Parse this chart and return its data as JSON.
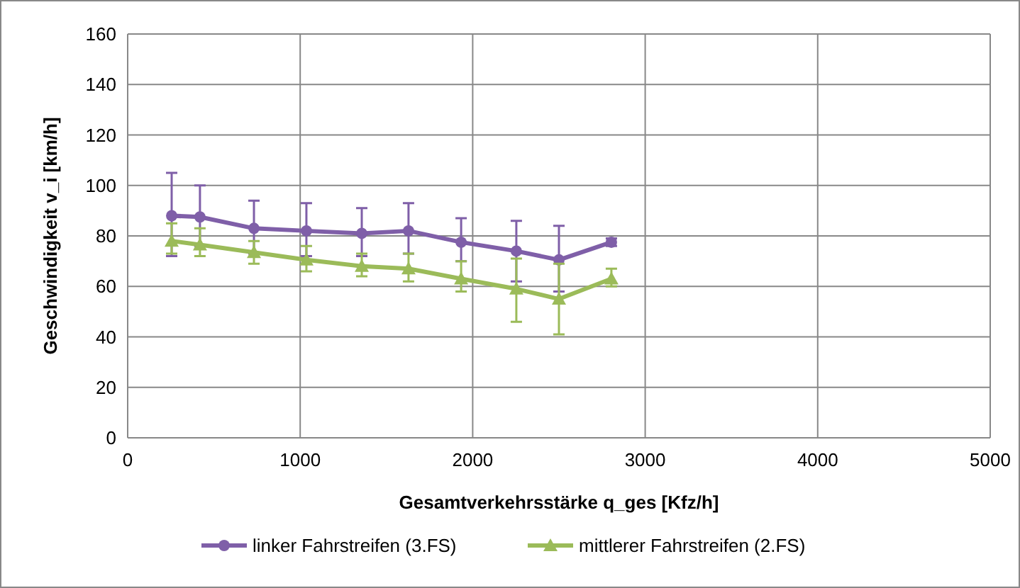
{
  "chart_data": {
    "type": "line",
    "xlabel": "Gesamtverkehrsstärke q_ges [Kfz/h]",
    "ylabel": "Geschwindigkeit v_i [km/h]",
    "x": [
      255,
      419,
      732,
      1036,
      1357,
      1628,
      1933,
      2253,
      2500,
      2804
    ],
    "series": [
      {
        "name": "linker Fahrstreifen (3.FS)",
        "color": "#7f5fa8",
        "marker": "circle",
        "values": [
          88,
          87.5,
          83,
          82,
          81,
          82,
          77.5,
          74,
          70.5,
          77.5
        ],
        "errors": [
          [
            72,
            105
          ],
          [
            76,
            100
          ],
          [
            73,
            94
          ],
          [
            72,
            93
          ],
          [
            72,
            91
          ],
          [
            73,
            93
          ],
          [
            70,
            87
          ],
          [
            62,
            86
          ],
          [
            58,
            84
          ],
          [
            76,
            79
          ]
        ]
      },
      {
        "name": "mittlerer Fahrstreifen (2.FS)",
        "color": "#9bbb59",
        "marker": "triangle",
        "values": [
          78,
          76.5,
          73.5,
          70.5,
          68,
          67,
          63,
          59,
          55,
          63
        ],
        "errors": [
          [
            73,
            85
          ],
          [
            72,
            83
          ],
          [
            69,
            78
          ],
          [
            66,
            76
          ],
          [
            64,
            73
          ],
          [
            62,
            73
          ],
          [
            58,
            70
          ],
          [
            46,
            71
          ],
          [
            41,
            69
          ],
          [
            60,
            67
          ]
        ]
      }
    ],
    "xlim": [
      0,
      5000
    ],
    "xticks": [
      0,
      1000,
      2000,
      3000,
      4000,
      5000
    ],
    "ylim": [
      0,
      160
    ],
    "yticks": [
      0,
      20,
      40,
      60,
      80,
      100,
      120,
      140,
      160
    ],
    "grid": true,
    "legend": "bottom",
    "line_style": "solid"
  }
}
